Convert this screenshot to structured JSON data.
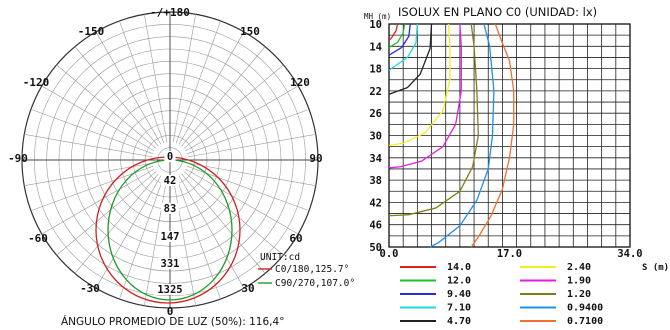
{
  "chart_data": [
    {
      "type": "polar",
      "angle_labels": [
        "-/+180",
        "-150",
        "150",
        "-120",
        "120",
        "-90",
        "90",
        "-60",
        "60",
        "-30",
        "30",
        "0"
      ],
      "radial_tick_labels": [
        "0",
        "42",
        "83",
        "147",
        "331",
        "1325"
      ],
      "unit_label": "UNIT:cd",
      "series": [
        {
          "name": "C0/180,125.7°",
          "color": "#d42020"
        },
        {
          "name": "C90/270,107.0°",
          "color": "#1f9a2a"
        }
      ],
      "caption": "ÁNGULO PROMEDIO DE LUZ (50%): 116,4°"
    },
    {
      "type": "line",
      "title": "ISOLUX EN PLANO C0 (UNIDAD: lx)",
      "ylabel": "MH (m)",
      "xlabel": "S (m)",
      "y_tick_labels": [
        "10",
        "14",
        "18",
        "22",
        "26",
        "30",
        "34",
        "38",
        "42",
        "46",
        "50"
      ],
      "x_tick_labels": [
        "0.0",
        "17.0",
        "34.0"
      ],
      "xlim": [
        0,
        34
      ],
      "ylim": [
        10,
        50
      ],
      "legend": [
        {
          "name": "14.0",
          "color": "#e02020"
        },
        {
          "name": "12.0",
          "color": "#1fbf2a"
        },
        {
          "name": "9.40",
          "color": "#2a2ae0"
        },
        {
          "name": "7.10",
          "color": "#20d8d8"
        },
        {
          "name": "4.70",
          "color": "#202020"
        },
        {
          "name": "2.40",
          "color": "#f0f020"
        },
        {
          "name": "1.90",
          "color": "#e020e0"
        },
        {
          "name": "1.20",
          "color": "#7f7f1a"
        },
        {
          "name": "0.9400",
          "color": "#2090f0"
        },
        {
          "name": "0.7100",
          "color": "#f07030"
        }
      ],
      "contours": [
        {
          "value": "14.0",
          "points": [
            [
              1.2,
              10
            ],
            [
              1.0,
              11.2
            ],
            [
              0.4,
              12.4
            ],
            [
              0,
              13
            ]
          ]
        },
        {
          "value": "12.0",
          "points": [
            [
              2.2,
              10
            ],
            [
              2.0,
              11.6
            ],
            [
              1.2,
              13.3
            ],
            [
              0,
              14.2
            ]
          ]
        },
        {
          "value": "9.40",
          "points": [
            [
              3.0,
              10
            ],
            [
              2.8,
              12.2
            ],
            [
              1.8,
              14.2
            ],
            [
              0,
              15.6
            ]
          ]
        },
        {
          "value": "7.10",
          "points": [
            [
              4.0,
              10
            ],
            [
              3.8,
              13.4
            ],
            [
              2.6,
              16.0
            ],
            [
              0,
              18.3
            ]
          ]
        },
        {
          "value": "4.70",
          "points": [
            [
              6.0,
              10
            ],
            [
              5.8,
              14.4
            ],
            [
              4.4,
              19.0
            ],
            [
              2.6,
              21.4
            ],
            [
              0,
              22.6
            ]
          ]
        },
        {
          "value": "2.40",
          "points": [
            [
              8.4,
              10
            ],
            [
              8.6,
              14
            ],
            [
              8.6,
              20
            ],
            [
              7.6,
              25.6
            ],
            [
              5.0,
              29.6
            ],
            [
              2.0,
              31.4
            ],
            [
              0,
              31.8
            ]
          ]
        },
        {
          "value": "1.90",
          "points": [
            [
              10.0,
              10
            ],
            [
              10.2,
              14
            ],
            [
              10.2,
              22
            ],
            [
              9.4,
              28
            ],
            [
              7.6,
              32
            ],
            [
              4.6,
              34.6
            ],
            [
              1.6,
              35.6
            ],
            [
              0,
              35.8
            ]
          ]
        },
        {
          "value": "1.20",
          "points": [
            [
              11.6,
              10
            ],
            [
              12.0,
              14
            ],
            [
              12.4,
              22
            ],
            [
              12.6,
              30
            ],
            [
              11.8,
              35.6
            ],
            [
              10.0,
              40
            ],
            [
              6.6,
              43
            ],
            [
              2.8,
              44.2
            ],
            [
              0,
              44.4
            ]
          ]
        },
        {
          "value": "0.9400",
          "points": [
            [
              13.4,
              10
            ],
            [
              14.2,
              14
            ],
            [
              14.8,
              22
            ],
            [
              14.6,
              30
            ],
            [
              14.0,
              36
            ],
            [
              12.4,
              41.6
            ],
            [
              10.0,
              46.2
            ],
            [
              7.0,
              49.2
            ],
            [
              5.8,
              50
            ]
          ]
        },
        {
          "value": "0.7100",
          "points": [
            [
              15.0,
              10
            ],
            [
              15.8,
              12.8
            ],
            [
              17.0,
              16.6
            ],
            [
              17.6,
              22
            ],
            [
              17.6,
              28
            ],
            [
              17.0,
              34
            ],
            [
              16.0,
              39.6
            ],
            [
              14.4,
              44.4
            ],
            [
              12.6,
              48.2
            ],
            [
              11.6,
              50
            ]
          ]
        }
      ]
    }
  ]
}
